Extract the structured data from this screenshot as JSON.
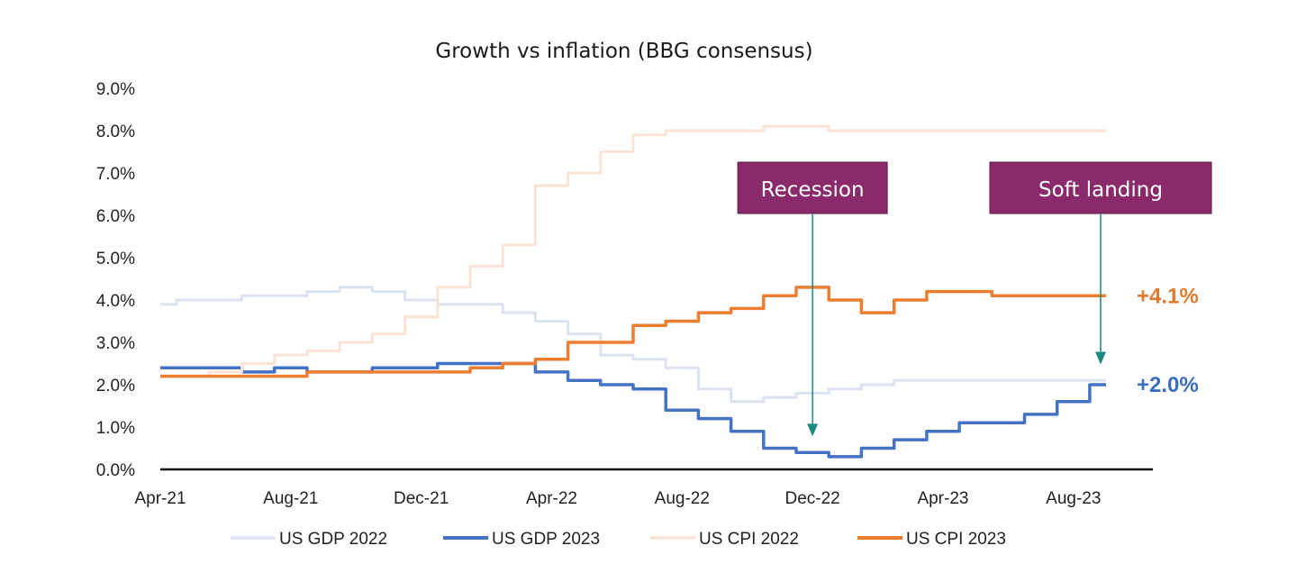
{
  "chart_data": {
    "type": "line",
    "title": "Growth vs inflation (BBG consensus)",
    "xlabel": "",
    "ylabel": "",
    "x_tick_labels": [
      "Apr-21",
      "Aug-21",
      "Dec-21",
      "Apr-22",
      "Aug-22",
      "Dec-22",
      "Apr-23",
      "Aug-23"
    ],
    "y_tick_labels": [
      "0.0%",
      "1.0%",
      "2.0%",
      "3.0%",
      "4.0%",
      "5.0%",
      "6.0%",
      "7.0%",
      "8.0%",
      "9.0%"
    ],
    "ylim": [
      0,
      9
    ],
    "x_range": [
      "Apr-21",
      "Sep-23"
    ],
    "grid": false,
    "legend_position": "bottom",
    "series": [
      {
        "name": "US GDP 2022",
        "color": "#dbe2f1",
        "points": [
          [
            "Apr-21",
            3.9
          ],
          [
            "May-21",
            4.0
          ],
          [
            "Jun-21",
            4.0
          ],
          [
            "Jul-21",
            4.1
          ],
          [
            "Aug-21",
            4.1
          ],
          [
            "Sep-21",
            4.2
          ],
          [
            "Oct-21",
            4.3
          ],
          [
            "Nov-21",
            4.2
          ],
          [
            "Dec-21",
            4.0
          ],
          [
            "Jan-22",
            3.9
          ],
          [
            "Feb-22",
            3.9
          ],
          [
            "Mar-22",
            3.7
          ],
          [
            "Apr-22",
            3.5
          ],
          [
            "May-22",
            3.2
          ],
          [
            "Jun-22",
            2.7
          ],
          [
            "Jul-22",
            2.6
          ],
          [
            "Aug-22",
            2.4
          ],
          [
            "Sep-22",
            1.9
          ],
          [
            "Oct-22",
            1.6
          ],
          [
            "Nov-22",
            1.7
          ],
          [
            "Dec-22",
            1.8
          ],
          [
            "Jan-23",
            1.9
          ],
          [
            "Feb-23",
            2.0
          ],
          [
            "Mar-23",
            2.1
          ],
          [
            "Apr-23",
            2.1
          ],
          [
            "May-23",
            2.1
          ],
          [
            "Jun-23",
            2.1
          ],
          [
            "Jul-23",
            2.1
          ],
          [
            "Aug-23",
            2.1
          ],
          [
            "Sep-23",
            2.1
          ]
        ]
      },
      {
        "name": "US GDP 2023",
        "color": "#4472c4",
        "points": [
          [
            "Apr-21",
            2.4
          ],
          [
            "May-21",
            2.4
          ],
          [
            "Jun-21",
            2.4
          ],
          [
            "Jul-21",
            2.3
          ],
          [
            "Aug-21",
            2.4
          ],
          [
            "Sep-21",
            2.3
          ],
          [
            "Oct-21",
            2.3
          ],
          [
            "Nov-21",
            2.4
          ],
          [
            "Dec-21",
            2.4
          ],
          [
            "Jan-22",
            2.5
          ],
          [
            "Feb-22",
            2.5
          ],
          [
            "Mar-22",
            2.5
          ],
          [
            "Apr-22",
            2.3
          ],
          [
            "May-22",
            2.1
          ],
          [
            "Jun-22",
            2.0
          ],
          [
            "Jul-22",
            1.9
          ],
          [
            "Aug-22",
            1.4
          ],
          [
            "Sep-22",
            1.2
          ],
          [
            "Oct-22",
            0.9
          ],
          [
            "Nov-22",
            0.5
          ],
          [
            "Dec-22",
            0.4
          ],
          [
            "Jan-23",
            0.3
          ],
          [
            "Feb-23",
            0.5
          ],
          [
            "Mar-23",
            0.7
          ],
          [
            "Apr-23",
            0.9
          ],
          [
            "May-23",
            1.1
          ],
          [
            "Jun-23",
            1.1
          ],
          [
            "Jul-23",
            1.3
          ],
          [
            "Aug-23",
            1.6
          ],
          [
            "Sep-23",
            2.0
          ]
        ]
      },
      {
        "name": "US CPI 2022",
        "color": "#fbe3d6",
        "points": [
          [
            "Apr-21",
            2.2
          ],
          [
            "May-21",
            2.2
          ],
          [
            "Jun-21",
            2.3
          ],
          [
            "Jul-21",
            2.5
          ],
          [
            "Aug-21",
            2.7
          ],
          [
            "Sep-21",
            2.8
          ],
          [
            "Oct-21",
            3.0
          ],
          [
            "Nov-21",
            3.2
          ],
          [
            "Dec-21",
            3.6
          ],
          [
            "Jan-22",
            4.3
          ],
          [
            "Feb-22",
            4.8
          ],
          [
            "Mar-22",
            5.3
          ],
          [
            "Apr-22",
            6.7
          ],
          [
            "May-22",
            7.0
          ],
          [
            "Jun-22",
            7.5
          ],
          [
            "Jul-22",
            7.9
          ],
          [
            "Aug-22",
            8.0
          ],
          [
            "Sep-22",
            8.0
          ],
          [
            "Oct-22",
            8.0
          ],
          [
            "Nov-22",
            8.1
          ],
          [
            "Dec-22",
            8.1
          ],
          [
            "Jan-23",
            8.0
          ],
          [
            "Feb-23",
            8.0
          ],
          [
            "Mar-23",
            8.0
          ],
          [
            "Apr-23",
            8.0
          ],
          [
            "May-23",
            8.0
          ],
          [
            "Jun-23",
            8.0
          ],
          [
            "Jul-23",
            8.0
          ],
          [
            "Aug-23",
            8.0
          ],
          [
            "Sep-23",
            8.0
          ]
        ]
      },
      {
        "name": "US CPI 2023",
        "color": "#ed7d31",
        "points": [
          [
            "Apr-21",
            2.2
          ],
          [
            "May-21",
            2.2
          ],
          [
            "Jun-21",
            2.2
          ],
          [
            "Jul-21",
            2.2
          ],
          [
            "Aug-21",
            2.2
          ],
          [
            "Sep-21",
            2.3
          ],
          [
            "Oct-21",
            2.3
          ],
          [
            "Nov-21",
            2.3
          ],
          [
            "Dec-21",
            2.3
          ],
          [
            "Jan-22",
            2.3
          ],
          [
            "Feb-22",
            2.4
          ],
          [
            "Mar-22",
            2.5
          ],
          [
            "Apr-22",
            2.6
          ],
          [
            "May-22",
            3.0
          ],
          [
            "Jun-22",
            3.0
          ],
          [
            "Jul-22",
            3.4
          ],
          [
            "Aug-22",
            3.5
          ],
          [
            "Sep-22",
            3.7
          ],
          [
            "Oct-22",
            3.8
          ],
          [
            "Nov-22",
            4.1
          ],
          [
            "Dec-22",
            4.3
          ],
          [
            "Jan-23",
            4.0
          ],
          [
            "Feb-23",
            3.7
          ],
          [
            "Mar-23",
            4.0
          ],
          [
            "Apr-23",
            4.2
          ],
          [
            "May-23",
            4.2
          ],
          [
            "Jun-23",
            4.1
          ],
          [
            "Jul-23",
            4.1
          ],
          [
            "Aug-23",
            4.1
          ],
          [
            "Sep-23",
            4.1
          ]
        ]
      }
    ],
    "annotations": [
      {
        "text": "Recession",
        "date": "Dec-22",
        "arrow_to_value": 0.8,
        "color": "#8b2a6a"
      },
      {
        "text": "Soft landing",
        "date": "Sep-23",
        "arrow_to_value": 2.5,
        "color": "#8b2a6a"
      }
    ],
    "end_labels": [
      {
        "text": "+4.1%",
        "series": "US CPI 2023",
        "color": "#e07a2e"
      },
      {
        "text": "+2.0%",
        "series": "US GDP 2023",
        "color": "#3a6dbd"
      }
    ],
    "arrow_color": "#1a8a80"
  }
}
